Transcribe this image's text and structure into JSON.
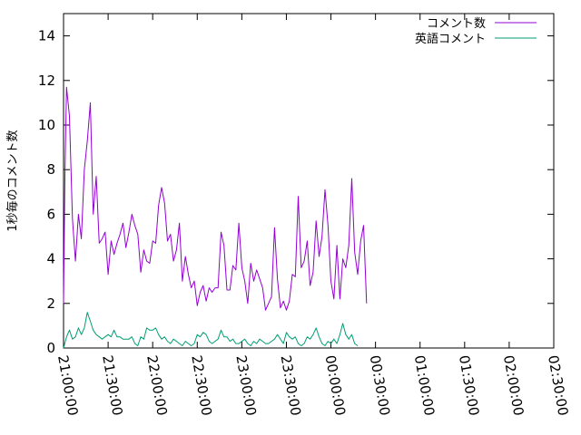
{
  "chart_data": {
    "type": "line",
    "title": "",
    "xlabel": "",
    "ylabel": "1秒毎のコメント数",
    "xlim": [
      "21:00:00",
      "02:30:00"
    ],
    "ylim": [
      0,
      15
    ],
    "yticks": [
      0,
      2,
      4,
      6,
      8,
      10,
      12,
      14
    ],
    "xticks": [
      "21:00:00",
      "21:30:00",
      "22:00:00",
      "22:30:00",
      "23:00:00",
      "23:30:00",
      "00:00:00",
      "00:30:00",
      "01:00:00",
      "01:30:00",
      "02:00:00",
      "02:30:00"
    ],
    "grid": false,
    "legend_position": "top-right",
    "series": [
      {
        "name": "コメント数",
        "color": "#9400d3",
        "points": [
          [
            "21:00:00",
            2.0
          ],
          [
            "21:01:00",
            8.0
          ],
          [
            "21:02:00",
            11.7
          ],
          [
            "21:04:00",
            10.4
          ],
          [
            "21:06:00",
            5.8
          ],
          [
            "21:08:00",
            3.9
          ],
          [
            "21:10:00",
            6.0
          ],
          [
            "21:12:00",
            4.9
          ],
          [
            "21:14:00",
            8.0
          ],
          [
            "21:16:00",
            9.3
          ],
          [
            "21:18:00",
            11.0
          ],
          [
            "21:20:00",
            6.0
          ],
          [
            "21:22:00",
            7.7
          ],
          [
            "21:24:00",
            4.7
          ],
          [
            "21:26:00",
            4.9
          ],
          [
            "21:28:00",
            5.2
          ],
          [
            "21:30:00",
            3.3
          ],
          [
            "21:32:00",
            4.8
          ],
          [
            "21:34:00",
            4.2
          ],
          [
            "21:36:00",
            4.7
          ],
          [
            "21:38:00",
            5.1
          ],
          [
            "21:40:00",
            5.6
          ],
          [
            "21:42:00",
            4.5
          ],
          [
            "21:44:00",
            5.2
          ],
          [
            "21:46:00",
            6.0
          ],
          [
            "21:48:00",
            5.5
          ],
          [
            "21:50:00",
            5.1
          ],
          [
            "21:52:00",
            3.4
          ],
          [
            "21:54:00",
            4.4
          ],
          [
            "21:56:00",
            3.9
          ],
          [
            "21:58:00",
            3.8
          ],
          [
            "22:00:00",
            4.8
          ],
          [
            "22:02:00",
            4.7
          ],
          [
            "22:04:00",
            6.4
          ],
          [
            "22:06:00",
            7.2
          ],
          [
            "22:08:00",
            6.5
          ],
          [
            "22:10:00",
            4.8
          ],
          [
            "22:12:00",
            5.1
          ],
          [
            "22:14:00",
            3.9
          ],
          [
            "22:16:00",
            4.4
          ],
          [
            "22:18:00",
            5.6
          ],
          [
            "22:20:00",
            3.0
          ],
          [
            "22:22:00",
            4.1
          ],
          [
            "22:24:00",
            3.3
          ],
          [
            "22:26:00",
            2.7
          ],
          [
            "22:28:00",
            3.0
          ],
          [
            "22:30:00",
            1.9
          ],
          [
            "22:32:00",
            2.5
          ],
          [
            "22:34:00",
            2.8
          ],
          [
            "22:36:00",
            2.1
          ],
          [
            "22:38:00",
            2.7
          ],
          [
            "22:40:00",
            2.5
          ],
          [
            "22:42:00",
            2.7
          ],
          [
            "22:44:00",
            2.7
          ],
          [
            "22:46:00",
            5.2
          ],
          [
            "22:48:00",
            4.6
          ],
          [
            "22:50:00",
            2.6
          ],
          [
            "22:52:00",
            2.6
          ],
          [
            "22:54:00",
            3.7
          ],
          [
            "22:56:00",
            3.5
          ],
          [
            "22:58:00",
            5.6
          ],
          [
            "23:00:00",
            3.6
          ],
          [
            "23:02:00",
            3.0
          ],
          [
            "23:04:00",
            2.0
          ],
          [
            "23:06:00",
            3.8
          ],
          [
            "23:08:00",
            3.0
          ],
          [
            "23:10:00",
            3.5
          ],
          [
            "23:12:00",
            3.1
          ],
          [
            "23:14:00",
            2.7
          ],
          [
            "23:16:00",
            1.7
          ],
          [
            "23:18:00",
            2.0
          ],
          [
            "23:20:00",
            2.3
          ],
          [
            "23:22:00",
            5.4
          ],
          [
            "23:24:00",
            3.1
          ],
          [
            "23:26:00",
            1.8
          ],
          [
            "23:28:00",
            2.1
          ],
          [
            "23:30:00",
            1.7
          ],
          [
            "23:32:00",
            2.1
          ],
          [
            "23:34:00",
            3.3
          ],
          [
            "23:36:00",
            3.2
          ],
          [
            "23:38:00",
            6.8
          ],
          [
            "23:40:00",
            3.6
          ],
          [
            "23:42:00",
            3.9
          ],
          [
            "23:44:00",
            4.8
          ],
          [
            "23:46:00",
            2.8
          ],
          [
            "23:48:00",
            3.4
          ],
          [
            "23:50:00",
            5.7
          ],
          [
            "23:52:00",
            4.1
          ],
          [
            "23:54:00",
            5.0
          ],
          [
            "23:56:00",
            7.1
          ],
          [
            "23:58:00",
            5.5
          ],
          [
            "00:00:00",
            3.0
          ],
          [
            "00:02:00",
            2.2
          ],
          [
            "00:04:00",
            4.6
          ],
          [
            "00:06:00",
            2.2
          ],
          [
            "00:08:00",
            4.0
          ],
          [
            "00:10:00",
            3.6
          ],
          [
            "00:12:00",
            4.6
          ],
          [
            "00:14:00",
            7.6
          ],
          [
            "00:16:00",
            4.3
          ],
          [
            "00:18:00",
            3.3
          ],
          [
            "00:20:00",
            4.8
          ],
          [
            "00:22:00",
            5.5
          ],
          [
            "00:24:00",
            2.0
          ]
        ]
      },
      {
        "name": "英語コメント",
        "color": "#009e73",
        "points": [
          [
            "21:00:00",
            0.0
          ],
          [
            "21:02:00",
            0.5
          ],
          [
            "21:04:00",
            0.8
          ],
          [
            "21:06:00",
            0.4
          ],
          [
            "21:08:00",
            0.5
          ],
          [
            "21:10:00",
            0.9
          ],
          [
            "21:12:00",
            0.6
          ],
          [
            "21:14:00",
            0.9
          ],
          [
            "21:16:00",
            1.6
          ],
          [
            "21:18:00",
            1.2
          ],
          [
            "21:20:00",
            0.8
          ],
          [
            "21:22:00",
            0.6
          ],
          [
            "21:24:00",
            0.5
          ],
          [
            "21:26:00",
            0.4
          ],
          [
            "21:28:00",
            0.5
          ],
          [
            "21:30:00",
            0.6
          ],
          [
            "21:32:00",
            0.5
          ],
          [
            "21:34:00",
            0.8
          ],
          [
            "21:36:00",
            0.5
          ],
          [
            "21:38:00",
            0.5
          ],
          [
            "21:40:00",
            0.4
          ],
          [
            "21:42:00",
            0.4
          ],
          [
            "21:44:00",
            0.4
          ],
          [
            "21:46:00",
            0.5
          ],
          [
            "21:48:00",
            0.2
          ],
          [
            "21:50:00",
            0.1
          ],
          [
            "21:52:00",
            0.5
          ],
          [
            "21:54:00",
            0.4
          ],
          [
            "21:56:00",
            0.9
          ],
          [
            "21:58:00",
            0.8
          ],
          [
            "22:00:00",
            0.8
          ],
          [
            "22:02:00",
            0.9
          ],
          [
            "22:04:00",
            0.6
          ],
          [
            "22:06:00",
            0.4
          ],
          [
            "22:08:00",
            0.5
          ],
          [
            "22:10:00",
            0.3
          ],
          [
            "22:12:00",
            0.2
          ],
          [
            "22:14:00",
            0.4
          ],
          [
            "22:16:00",
            0.3
          ],
          [
            "22:18:00",
            0.2
          ],
          [
            "22:20:00",
            0.1
          ],
          [
            "22:22:00",
            0.3
          ],
          [
            "22:24:00",
            0.2
          ],
          [
            "22:26:00",
            0.1
          ],
          [
            "22:28:00",
            0.2
          ],
          [
            "22:30:00",
            0.6
          ],
          [
            "22:32:00",
            0.5
          ],
          [
            "22:34:00",
            0.7
          ],
          [
            "22:36:00",
            0.6
          ],
          [
            "22:38:00",
            0.3
          ],
          [
            "22:40:00",
            0.2
          ],
          [
            "22:42:00",
            0.3
          ],
          [
            "22:44:00",
            0.4
          ],
          [
            "22:46:00",
            0.8
          ],
          [
            "22:48:00",
            0.5
          ],
          [
            "22:50:00",
            0.5
          ],
          [
            "22:52:00",
            0.3
          ],
          [
            "22:54:00",
            0.4
          ],
          [
            "22:56:00",
            0.2
          ],
          [
            "22:58:00",
            0.2
          ],
          [
            "23:00:00",
            0.3
          ],
          [
            "23:02:00",
            0.4
          ],
          [
            "23:04:00",
            0.2
          ],
          [
            "23:06:00",
            0.1
          ],
          [
            "23:08:00",
            0.3
          ],
          [
            "23:10:00",
            0.2
          ],
          [
            "23:12:00",
            0.4
          ],
          [
            "23:14:00",
            0.3
          ],
          [
            "23:16:00",
            0.2
          ],
          [
            "23:18:00",
            0.2
          ],
          [
            "23:20:00",
            0.3
          ],
          [
            "23:22:00",
            0.4
          ],
          [
            "23:24:00",
            0.6
          ],
          [
            "23:26:00",
            0.4
          ],
          [
            "23:28:00",
            0.2
          ],
          [
            "23:30:00",
            0.7
          ],
          [
            "23:32:00",
            0.5
          ],
          [
            "23:34:00",
            0.4
          ],
          [
            "23:36:00",
            0.5
          ],
          [
            "23:38:00",
            0.2
          ],
          [
            "23:40:00",
            0.1
          ],
          [
            "23:42:00",
            0.2
          ],
          [
            "23:44:00",
            0.5
          ],
          [
            "23:46:00",
            0.4
          ],
          [
            "23:48:00",
            0.6
          ],
          [
            "23:50:00",
            0.9
          ],
          [
            "23:52:00",
            0.5
          ],
          [
            "23:54:00",
            0.2
          ],
          [
            "23:56:00",
            0.1
          ],
          [
            "23:58:00",
            0.3
          ],
          [
            "00:00:00",
            0.2
          ],
          [
            "00:02:00",
            0.4
          ],
          [
            "00:04:00",
            0.2
          ],
          [
            "00:06:00",
            0.6
          ],
          [
            "00:08:00",
            1.1
          ],
          [
            "00:10:00",
            0.6
          ],
          [
            "00:12:00",
            0.4
          ],
          [
            "00:14:00",
            0.6
          ],
          [
            "00:16:00",
            0.2
          ],
          [
            "00:18:00",
            0.1
          ]
        ]
      }
    ]
  }
}
